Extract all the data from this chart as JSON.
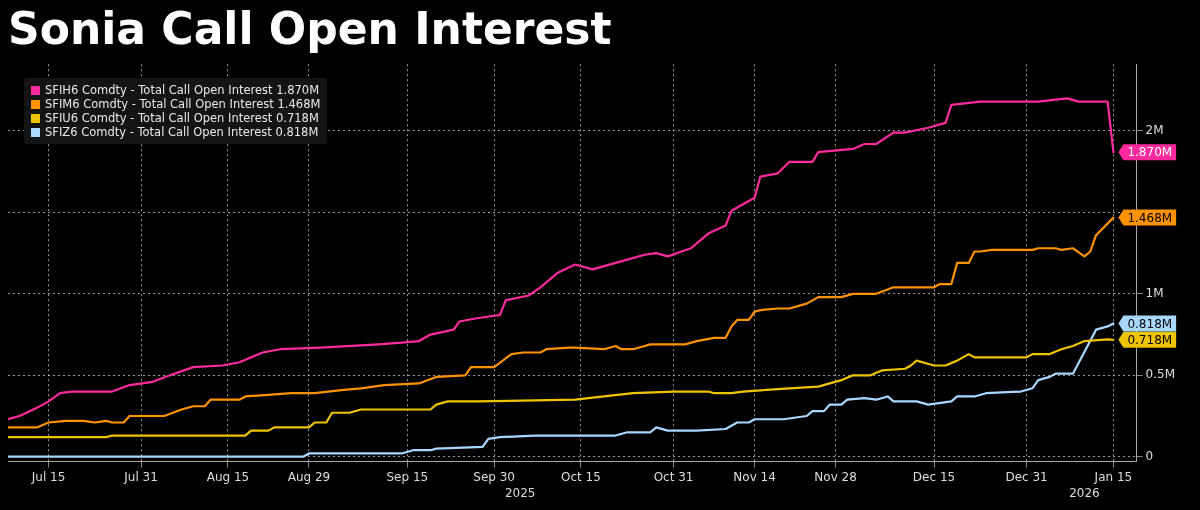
{
  "chart_data": {
    "type": "line",
    "title": "Sonia Call Open Interest",
    "xlim": [
      "2025-07-08",
      "2026-01-19"
    ],
    "xticks": [
      {
        "value": "2025-07-15",
        "label": "Jul 15"
      },
      {
        "value": "2025-07-31",
        "label": "Jul 31"
      },
      {
        "value": "2025-08-15",
        "label": "Aug 15"
      },
      {
        "value": "2025-08-29",
        "label": "Aug 29"
      },
      {
        "value": "2025-09-15",
        "label": "Sep 15"
      },
      {
        "value": "2025-09-30",
        "label": "Sep 30"
      },
      {
        "value": "2025-10-15",
        "label": "Oct 15"
      },
      {
        "value": "2025-10-31",
        "label": "Oct 31"
      },
      {
        "value": "2025-11-14",
        "label": "Nov 14"
      },
      {
        "value": "2025-11-28",
        "label": "Nov 28"
      },
      {
        "value": "2025-12-15",
        "label": "Dec 15"
      },
      {
        "value": "2025-12-31",
        "label": "Dec 31"
      },
      {
        "value": "2026-01-15",
        "label": "Jan 15"
      }
    ],
    "ylim": [
      -0.03,
      2.41
    ],
    "yticks": [
      0,
      {
        "value": 0.5,
        "label": "0.5M"
      },
      {
        "value": 1,
        "label": "1M"
      },
      {
        "value": 1.5,
        "label": null
      },
      {
        "value": 2,
        "label": "2M"
      }
    ],
    "grid": true,
    "legend": "top left",
    "marker": "none",
    "line_style": "solid",
    "annotations": [
      "2025",
      "2026"
    ],
    "series": [
      {
        "name": "SFIH6 Comdty - Total Call Open Interest 1.870M",
        "color": "#ff2a9d",
        "x": [
          "2025-07-08",
          "2025-07-10",
          "2025-07-13",
          "2025-07-15",
          "2025-07-17",
          "2025-07-19",
          "2025-07-26",
          "2025-07-29",
          "2025-08-02",
          "2025-08-05",
          "2025-08-09",
          "2025-08-14",
          "2025-08-17",
          "2025-08-21",
          "2025-08-24",
          "2025-08-31",
          "2025-09-10",
          "2025-09-14",
          "2025-09-17",
          "2025-09-19",
          "2025-09-23",
          "2025-09-24",
          "2025-09-27",
          "2025-10-01",
          "2025-10-02",
          "2025-10-06",
          "2025-10-08",
          "2025-10-11",
          "2025-10-14",
          "2025-10-17",
          "2025-10-21",
          "2025-10-26",
          "2025-10-28",
          "2025-10-30",
          "2025-11-03",
          "2025-11-06",
          "2025-11-09",
          "2025-11-10",
          "2025-11-14",
          "2025-11-15",
          "2025-11-18",
          "2025-11-20",
          "2025-11-24",
          "2025-11-25",
          "2025-12-01",
          "2025-12-03",
          "2025-12-05",
          "2025-12-08",
          "2025-12-10",
          "2025-12-14",
          "2025-12-17",
          "2025-12-18",
          "2025-12-23",
          "2026-01-02",
          "2026-01-07",
          "2026-01-09",
          "2026-01-14",
          "2026-01-15"
        ],
        "values": [
          0.23,
          0.25,
          0.3,
          0.34,
          0.39,
          0.4,
          0.4,
          0.44,
          0.46,
          0.5,
          0.55,
          0.56,
          0.58,
          0.64,
          0.66,
          0.67,
          0.69,
          0.7,
          0.71,
          0.75,
          0.78,
          0.83,
          0.85,
          0.87,
          0.96,
          0.99,
          1.04,
          1.13,
          1.18,
          1.15,
          1.19,
          1.24,
          1.25,
          1.23,
          1.28,
          1.37,
          1.42,
          1.51,
          1.59,
          1.72,
          1.74,
          1.81,
          1.81,
          1.87,
          1.89,
          1.92,
          1.92,
          1.99,
          1.99,
          2.02,
          2.05,
          2.16,
          2.18,
          2.18,
          2.2,
          2.18,
          2.18,
          1.87
        ],
        "value_labels": [
          null,
          null,
          null,
          null,
          null,
          null,
          null,
          null,
          null,
          null,
          null,
          null,
          null,
          null,
          null,
          null,
          null,
          null,
          null,
          null,
          null,
          null,
          null,
          null,
          null,
          null,
          null,
          null,
          null,
          null,
          null,
          null,
          null,
          null,
          null,
          null,
          null,
          null,
          null,
          null,
          null,
          null,
          null,
          null,
          null,
          null,
          null,
          null,
          null,
          null,
          null,
          null,
          null,
          null,
          null,
          null,
          null,
          "1.870M"
        ]
      },
      {
        "name": "SFIM6 Comdty - Total Call Open Interest 1.468M",
        "color": "#ff9200",
        "x": [
          "2025-07-08",
          "2025-07-13",
          "2025-07-15",
          "2025-07-18",
          "2025-07-21",
          "2025-07-23",
          "2025-07-25",
          "2025-07-26",
          "2025-07-28",
          "2025-07-29",
          "2025-08-04",
          "2025-08-07",
          "2025-08-09",
          "2025-08-11",
          "2025-08-12",
          "2025-08-17",
          "2025-08-18",
          "2025-08-26",
          "2025-08-30",
          "2025-09-04",
          "2025-09-07",
          "2025-09-11",
          "2025-09-17",
          "2025-09-20",
          "2025-09-25",
          "2025-09-26",
          "2025-09-30",
          "2025-10-03",
          "2025-10-05",
          "2025-10-08",
          "2025-10-09",
          "2025-10-13",
          "2025-10-14",
          "2025-10-19",
          "2025-10-21",
          "2025-10-22",
          "2025-10-24",
          "2025-10-26",
          "2025-10-27",
          "2025-11-02",
          "2025-11-04",
          "2025-11-07",
          "2025-11-09",
          "2025-11-10",
          "2025-11-11",
          "2025-11-13",
          "2025-11-14",
          "2025-11-15",
          "2025-11-18",
          "2025-11-20",
          "2025-11-23",
          "2025-11-25",
          "2025-11-29",
          "2025-12-01",
          "2025-12-05",
          "2025-12-08",
          "2025-12-15",
          "2025-12-16",
          "2025-12-18",
          "2025-12-19",
          "2025-12-21",
          "2025-12-22",
          "2025-12-23",
          "2025-12-25",
          "2026-01-01",
          "2026-01-02",
          "2026-01-05",
          "2026-01-06",
          "2026-01-08",
          "2026-01-10",
          "2026-01-11",
          "2026-01-12",
          "2026-01-15"
        ],
        "values": [
          0.18,
          0.18,
          0.21,
          0.22,
          0.22,
          0.21,
          0.22,
          0.21,
          0.21,
          0.25,
          0.25,
          0.29,
          0.31,
          0.31,
          0.35,
          0.35,
          0.37,
          0.39,
          0.39,
          0.41,
          0.42,
          0.44,
          0.45,
          0.49,
          0.5,
          0.55,
          0.55,
          0.63,
          0.64,
          0.64,
          0.66,
          0.67,
          0.67,
          0.66,
          0.68,
          0.66,
          0.66,
          0.68,
          0.69,
          0.69,
          0.71,
          0.73,
          0.73,
          0.8,
          0.84,
          0.84,
          0.89,
          0.9,
          0.91,
          0.91,
          0.94,
          0.98,
          0.98,
          1.0,
          1.0,
          1.04,
          1.04,
          1.06,
          1.06,
          1.19,
          1.19,
          1.26,
          1.26,
          1.27,
          1.27,
          1.28,
          1.28,
          1.27,
          1.28,
          1.23,
          1.26,
          1.36,
          1.468
        ],
        "value_labels": [
          null,
          null,
          null,
          null,
          null,
          null,
          null,
          null,
          null,
          null,
          null,
          null,
          null,
          null,
          null,
          null,
          null,
          null,
          null,
          null,
          null,
          null,
          null,
          null,
          null,
          null,
          null,
          null,
          null,
          null,
          null,
          null,
          null,
          null,
          null,
          null,
          null,
          null,
          null,
          null,
          null,
          null,
          null,
          null,
          null,
          null,
          null,
          null,
          null,
          null,
          null,
          null,
          null,
          null,
          null,
          null,
          null,
          null,
          null,
          null,
          null,
          null,
          null,
          null,
          null,
          null,
          null,
          null,
          null,
          null,
          null,
          null,
          "1.468M"
        ]
      },
      {
        "name": "SFIU6 Comdty - Total Call Open Interest 0.718M",
        "color": "#eec300",
        "x": [
          "2025-07-08",
          "2025-07-25",
          "2025-07-26",
          "2025-08-13",
          "2025-08-18",
          "2025-08-19",
          "2025-08-22",
          "2025-08-23",
          "2025-08-29",
          "2025-08-30",
          "2025-09-01",
          "2025-09-02",
          "2025-09-05",
          "2025-09-07",
          "2025-09-16",
          "2025-09-19",
          "2025-09-20",
          "2025-09-22",
          "2025-09-27",
          "2025-10-14",
          "2025-10-19",
          "2025-10-24",
          "2025-10-31",
          "2025-11-06",
          "2025-11-07",
          "2025-11-10",
          "2025-11-12",
          "2025-11-16",
          "2025-11-20",
          "2025-11-25",
          "2025-11-29",
          "2025-12-01",
          "2025-12-04",
          "2025-12-06",
          "2025-12-10",
          "2025-12-11",
          "2025-12-12",
          "2025-12-15",
          "2025-12-17",
          "2025-12-19",
          "2025-12-21",
          "2025-12-22",
          "2025-12-31",
          "2026-01-01",
          "2026-01-04",
          "2026-01-06",
          "2026-01-08",
          "2026-01-10",
          "2026-01-14",
          "2026-01-15"
        ],
        "values": [
          0.12,
          0.12,
          0.13,
          0.13,
          0.13,
          0.16,
          0.16,
          0.18,
          0.18,
          0.21,
          0.21,
          0.27,
          0.27,
          0.29,
          0.29,
          0.29,
          0.32,
          0.34,
          0.34,
          0.35,
          0.37,
          0.39,
          0.4,
          0.4,
          0.39,
          0.39,
          0.4,
          0.41,
          0.42,
          0.43,
          0.47,
          0.5,
          0.5,
          0.53,
          0.54,
          0.56,
          0.59,
          0.56,
          0.56,
          0.59,
          0.63,
          0.61,
          0.61,
          0.63,
          0.63,
          0.66,
          0.68,
          0.71,
          0.72,
          0.718
        ],
        "value_labels": [
          null,
          null,
          null,
          null,
          null,
          null,
          null,
          null,
          null,
          null,
          null,
          null,
          null,
          null,
          null,
          null,
          null,
          null,
          null,
          null,
          null,
          null,
          null,
          null,
          null,
          null,
          null,
          null,
          null,
          null,
          null,
          null,
          null,
          null,
          null,
          null,
          null,
          null,
          null,
          null,
          null,
          null,
          null,
          null,
          null,
          null,
          null,
          null,
          null,
          "0.718M"
        ]
      },
      {
        "name": "SFIZ6 Comdty - Total Call Open Interest 0.818M",
        "color": "#a8d8ff",
        "x": [
          "2025-07-08",
          "2025-08-28",
          "2025-08-29",
          "2025-09-14",
          "2025-09-16",
          "2025-09-19",
          "2025-09-20",
          "2025-09-28",
          "2025-09-29",
          "2025-10-01",
          "2025-10-07",
          "2025-10-13",
          "2025-10-14",
          "2025-10-21",
          "2025-10-23",
          "2025-10-27",
          "2025-10-28",
          "2025-10-30",
          "2025-11-04",
          "2025-11-09",
          "2025-11-11",
          "2025-11-13",
          "2025-11-14",
          "2025-11-19",
          "2025-11-23",
          "2025-11-24",
          "2025-11-26",
          "2025-11-27",
          "2025-11-29",
          "2025-11-30",
          "2025-12-03",
          "2025-12-05",
          "2025-12-07",
          "2025-12-08",
          "2025-12-11",
          "2025-12-12",
          "2025-12-14",
          "2025-12-18",
          "2025-12-19",
          "2025-12-22",
          "2025-12-24",
          "2025-12-30",
          "2026-01-01",
          "2026-01-02",
          "2026-01-04",
          "2026-01-05",
          "2026-01-08",
          "2026-01-12",
          "2026-01-14",
          "2026-01-15"
        ],
        "values": [
          0.0,
          0.0,
          0.02,
          0.02,
          0.04,
          0.04,
          0.05,
          0.06,
          0.11,
          0.12,
          0.13,
          0.13,
          0.13,
          0.13,
          0.15,
          0.15,
          0.18,
          0.16,
          0.16,
          0.17,
          0.21,
          0.21,
          0.23,
          0.23,
          0.25,
          0.28,
          0.28,
          0.32,
          0.32,
          0.35,
          0.36,
          0.35,
          0.37,
          0.34,
          0.34,
          0.34,
          0.32,
          0.34,
          0.37,
          0.37,
          0.39,
          0.4,
          0.42,
          0.47,
          0.49,
          0.51,
          0.51,
          0.78,
          0.8,
          0.818
        ],
        "value_labels": [
          null,
          null,
          null,
          null,
          null,
          null,
          null,
          null,
          null,
          null,
          null,
          null,
          null,
          null,
          null,
          null,
          null,
          null,
          null,
          null,
          null,
          null,
          null,
          null,
          null,
          null,
          null,
          null,
          null,
          null,
          null,
          null,
          null,
          null,
          null,
          null,
          null,
          null,
          null,
          null,
          null,
          null,
          null,
          null,
          null,
          null,
          null,
          null,
          null,
          "0.818M"
        ]
      }
    ]
  }
}
